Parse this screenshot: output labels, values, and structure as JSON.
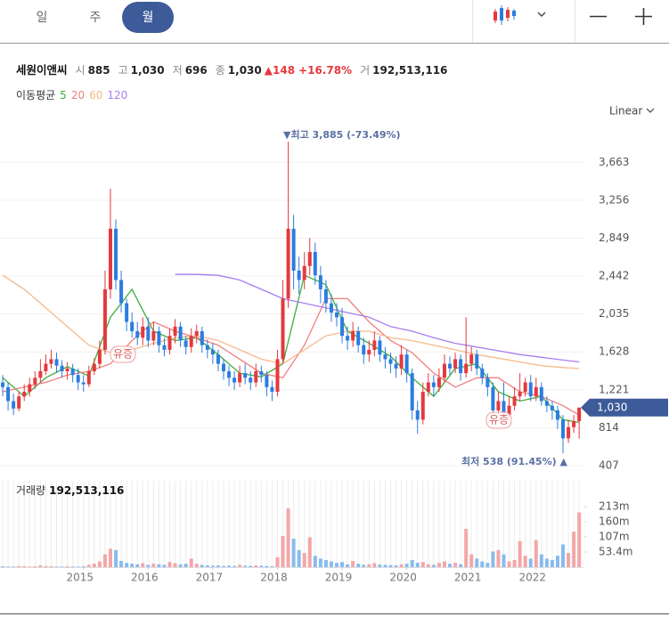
{
  "toolbar": {
    "tabs": [
      "일",
      "주",
      "월"
    ],
    "active": 2
  },
  "quote": {
    "name": "세원이앤씨",
    "items": [
      {
        "label": "시",
        "value": "885"
      },
      {
        "label": "고",
        "value": "1,030"
      },
      {
        "label": "저",
        "value": "696"
      },
      {
        "label": "종",
        "value": "1,030"
      }
    ],
    "change": "▲148",
    "change_pct": "+16.78%",
    "volume_label": "거",
    "volume": "192,513,116"
  },
  "chart_data": {
    "type": "candlestick",
    "open": [
      1300,
      1250,
      1100,
      1020,
      1150,
      1200,
      1280,
      1350,
      1420,
      1500,
      1550,
      1480,
      1420,
      1450,
      1380,
      1300,
      1280,
      1420,
      1500,
      1650,
      2300,
      2950,
      2400,
      2150,
      1950,
      1850,
      1780,
      1900,
      1750,
      1850,
      1700,
      1650,
      1800,
      1900,
      1750,
      1680,
      1800,
      1850,
      1700,
      1650,
      1600,
      1500,
      1420,
      1350,
      1300,
      1400,
      1350,
      1300,
      1420,
      1380,
      1250,
      1200,
      1550,
      2200,
      2950,
      2500,
      2400,
      2550,
      2700,
      2450,
      2300,
      2150,
      2050,
      2000,
      1800,
      1750,
      1850,
      1700,
      1600,
      1650,
      1750,
      1600,
      1550,
      1500,
      1450,
      1600,
      1400,
      1000,
      900,
      1200,
      1300,
      1250,
      1350,
      1500,
      1450,
      1550,
      1400,
      1500,
      1600,
      1450,
      1350,
      1250,
      1000,
      1100,
      950,
      1050,
      1150,
      1200,
      1300,
      1150,
      1250,
      1100,
      1050,
      1000,
      900,
      700,
      820,
      885
    ],
    "high": [
      1380,
      1300,
      1180,
      1200,
      1280,
      1350,
      1420,
      1550,
      1600,
      1650,
      1620,
      1540,
      1520,
      1500,
      1450,
      1380,
      1480,
      1560,
      1750,
      2500,
      3380,
      3050,
      2500,
      2200,
      2050,
      1950,
      2000,
      2000,
      1950,
      1900,
      1780,
      1880,
      1980,
      1950,
      1800,
      1880,
      1920,
      1900,
      1760,
      1720,
      1650,
      1560,
      1480,
      1420,
      1480,
      1500,
      1420,
      1500,
      1480,
      1420,
      1320,
      1650,
      2400,
      3885,
      3100,
      2650,
      2700,
      2850,
      2800,
      2550,
      2400,
      2250,
      2150,
      2100,
      1900,
      1950,
      1900,
      1780,
      1750,
      1850,
      1800,
      1680,
      1620,
      1580,
      1700,
      1650,
      1450,
      1100,
      1300,
      1400,
      1380,
      1450,
      1600,
      1580,
      1620,
      1600,
      2000,
      1680,
      1650,
      1500,
      1400,
      1300,
      1200,
      1300,
      1150,
      1250,
      1400,
      1350,
      1380,
      1350,
      1300,
      1150,
      1100,
      1050,
      950,
      900,
      950,
      1030
    ],
    "low": [
      1150,
      1000,
      950,
      990,
      1100,
      1150,
      1230,
      1300,
      1380,
      1450,
      1400,
      1350,
      1330,
      1300,
      1220,
      1200,
      1250,
      1380,
      1450,
      1600,
      2200,
      2300,
      2050,
      1850,
      1780,
      1700,
      1700,
      1680,
      1700,
      1620,
      1580,
      1600,
      1720,
      1680,
      1600,
      1620,
      1720,
      1620,
      1560,
      1500,
      1420,
      1330,
      1260,
      1220,
      1250,
      1280,
      1220,
      1250,
      1300,
      1150,
      1100,
      1150,
      1500,
      2100,
      2300,
      2250,
      2300,
      2450,
      2350,
      2150,
      2050,
      1950,
      1900,
      1720,
      1650,
      1680,
      1620,
      1500,
      1520,
      1580,
      1520,
      1450,
      1400,
      1350,
      1380,
      1300,
      900,
      750,
      850,
      1150,
      1150,
      1200,
      1300,
      1380,
      1400,
      1320,
      1350,
      1420,
      1380,
      1280,
      1150,
      900,
      950,
      900,
      900,
      1000,
      1100,
      1150,
      1100,
      1100,
      1050,
      980,
      900,
      800,
      538,
      650,
      760,
      696
    ],
    "close": [
      1250,
      1100,
      1020,
      1150,
      1200,
      1280,
      1350,
      1420,
      1500,
      1550,
      1480,
      1420,
      1450,
      1380,
      1300,
      1280,
      1420,
      1500,
      1650,
      2300,
      2950,
      2400,
      2150,
      1950,
      1850,
      1780,
      1900,
      1750,
      1850,
      1700,
      1650,
      1800,
      1900,
      1750,
      1680,
      1800,
      1850,
      1700,
      1650,
      1600,
      1500,
      1420,
      1350,
      1300,
      1400,
      1350,
      1300,
      1420,
      1380,
      1250,
      1200,
      1550,
      2200,
      2950,
      2500,
      2400,
      2550,
      2700,
      2450,
      2300,
      2150,
      2050,
      2000,
      1800,
      1750,
      1850,
      1700,
      1600,
      1650,
      1750,
      1600,
      1550,
      1500,
      1450,
      1600,
      1400,
      1000,
      900,
      1200,
      1300,
      1250,
      1350,
      1500,
      1450,
      1550,
      1400,
      1500,
      1600,
      1450,
      1350,
      1250,
      1000,
      1100,
      950,
      1050,
      1150,
      1200,
      1300,
      1150,
      1250,
      1100,
      1050,
      1000,
      900,
      700,
      820,
      885,
      1030
    ],
    "volume": [
      3000000.0,
      2000000.0,
      2000000.0,
      4000000.0,
      3000000.0,
      2000000.0,
      3000000.0,
      6000000.0,
      4000000.0,
      3000000.0,
      2000000.0,
      2000000.0,
      3000000.0,
      2000000.0,
      2000000.0,
      3000000.0,
      8000000.0,
      12000000.0,
      20000000.0,
      45000000.0,
      65000000.0,
      60000000.0,
      22000000.0,
      15000000.0,
      12000000.0,
      10000000.0,
      14000000.0,
      8000000.0,
      12000000.0,
      10000000.0,
      8000000.0,
      18000000.0,
      14000000.0,
      10000000.0,
      12000000.0,
      30000000.0,
      12000000.0,
      8000000.0,
      6000000.0,
      5000000.0,
      6000000.0,
      4000000.0,
      5000000.0,
      4000000.0,
      8000000.0,
      5000000.0,
      4000000.0,
      6000000.0,
      5000000.0,
      4000000.0,
      3000000.0,
      35000000.0,
      110000000.0,
      207000000.0,
      100000000.0,
      60000000.0,
      50000000.0,
      105000000.0,
      40000000.0,
      30000000.0,
      25000000.0,
      20000000.0,
      15000000.0,
      18000000.0,
      10000000.0,
      22000000.0,
      12000000.0,
      8000000.0,
      10000000.0,
      14000000.0,
      9000000.0,
      8000000.0,
      7000000.0,
      6000000.0,
      10000000.0,
      12000000.0,
      25000000.0,
      15000000.0,
      18000000.0,
      10000000.0,
      8000000.0,
      15000000.0,
      20000000.0,
      12000000.0,
      15000000.0,
      10000000.0,
      135000000.0,
      45000000.0,
      30000000.0,
      20000000.0,
      15000000.0,
      55000000.0,
      60000000.0,
      45000000.0,
      20000000.0,
      25000000.0,
      92000000.0,
      40000000.0,
      30000000.0,
      95000000.0,
      45000000.0,
      30000000.0,
      25000000.0,
      40000000.0,
      80000000.0,
      50000000.0,
      125000000.0,
      192513116
    ],
    "up_color": "#e5393d",
    "down_color": "#2b7de0",
    "volume_up_color": "#f4a6a8",
    "volume_down_color": "#88bbee",
    "xlim": [
      -0.5,
      107.8
    ],
    "xticks": [
      {
        "value": 15,
        "label": "2015"
      },
      {
        "value": 27,
        "label": "2016"
      },
      {
        "value": 39,
        "label": "2017"
      },
      {
        "value": 51,
        "label": "2018"
      },
      {
        "value": 63,
        "label": "2019"
      },
      {
        "value": 75,
        "label": "2020"
      },
      {
        "value": 87,
        "label": "2021"
      },
      {
        "value": 99,
        "label": "2022"
      }
    ],
    "ylim": [
      340,
      4115
    ],
    "yticks": [
      407,
      814,
      {
        "value": 1221,
        "label": "1,221"
      },
      {
        "value": 1628,
        "label": "1,628"
      },
      {
        "value": 2035,
        "label": "2,035"
      },
      {
        "value": 2442,
        "label": "2,442"
      },
      {
        "value": 2849,
        "label": "2,849"
      },
      {
        "value": 3256,
        "label": "3,256"
      },
      {
        "value": 3663,
        "label": "3,663"
      }
    ],
    "volume_ylim": [
      0,
      304000000
    ],
    "volume_yticks": [
      {
        "value": 53400000,
        "label": "53.4m"
      },
      {
        "value": 107000000,
        "label": "107m"
      },
      {
        "value": 160000000,
        "label": "160m"
      },
      {
        "value": 213000000,
        "label": "213m"
      }
    ],
    "ma_title": "이동평균",
    "moving_averages": [
      {
        "name": "5",
        "color": "#3cae3c",
        "x": [
          0,
          4,
          8,
          12,
          16,
          20,
          24,
          28,
          32,
          36,
          40,
          44,
          48,
          52,
          56,
          60,
          64,
          68,
          72,
          76,
          80,
          84,
          88,
          92,
          96,
          100,
          104,
          107
        ],
        "values": [
          1350,
          1150,
          1350,
          1470,
          1370,
          2000,
          2300,
          1850,
          1750,
          1780,
          1600,
          1400,
          1360,
          1500,
          2450,
          2350,
          1850,
          1720,
          1580,
          1350,
          1150,
          1450,
          1500,
          1200,
          1100,
          1150,
          900,
          870
        ]
      },
      {
        "name": "20",
        "color": "#f07f7f",
        "x": [
          0,
          4,
          8,
          12,
          16,
          20,
          24,
          28,
          32,
          36,
          40,
          44,
          48,
          52,
          56,
          60,
          64,
          68,
          72,
          76,
          80,
          84,
          88,
          92,
          96,
          100,
          104,
          107
        ],
        "values": [
          1200,
          1250,
          1300,
          1380,
          1420,
          1500,
          1750,
          1950,
          1850,
          1780,
          1700,
          1550,
          1400,
          1350,
          1700,
          2200,
          2200,
          1950,
          1750,
          1620,
          1400,
          1250,
          1350,
          1350,
          1200,
          1150,
          1050,
          950
        ]
      },
      {
        "name": "60",
        "color": "#f7b98a",
        "x": [
          0,
          4,
          8,
          12,
          16,
          20,
          24,
          28,
          32,
          36,
          40,
          44,
          48,
          52,
          56,
          60,
          64,
          68,
          72,
          76,
          80,
          84,
          88,
          92,
          96,
          100,
          104,
          107
        ],
        "values": [
          2450,
          2300,
          2100,
          1900,
          1700,
          1620,
          1650,
          1720,
          1780,
          1800,
          1750,
          1650,
          1550,
          1500,
          1650,
          1800,
          1850,
          1850,
          1780,
          1750,
          1700,
          1650,
          1600,
          1560,
          1520,
          1480,
          1460,
          1450
        ]
      },
      {
        "name": "120",
        "color": "#a77ef0",
        "x": [
          32,
          36,
          40,
          44,
          48,
          52,
          56,
          60,
          64,
          68,
          72,
          76,
          80,
          84,
          88,
          92,
          96,
          100,
          104,
          107
        ],
        "values": [
          2460,
          2460,
          2450,
          2400,
          2300,
          2200,
          2150,
          2100,
          2050,
          2000,
          1900,
          1850,
          1780,
          1720,
          1680,
          1640,
          1600,
          1570,
          1540,
          1520
        ]
      }
    ],
    "volume_legend": {
      "name": "거래량",
      "value": "192,513,116"
    },
    "annotations": [
      "▼최고 3,885 (-73.49%)",
      "최저 538 (91.45%) ▲",
      "유증",
      "유증"
    ],
    "last_label": "1,030",
    "scale": "Linear",
    "grid": true
  }
}
